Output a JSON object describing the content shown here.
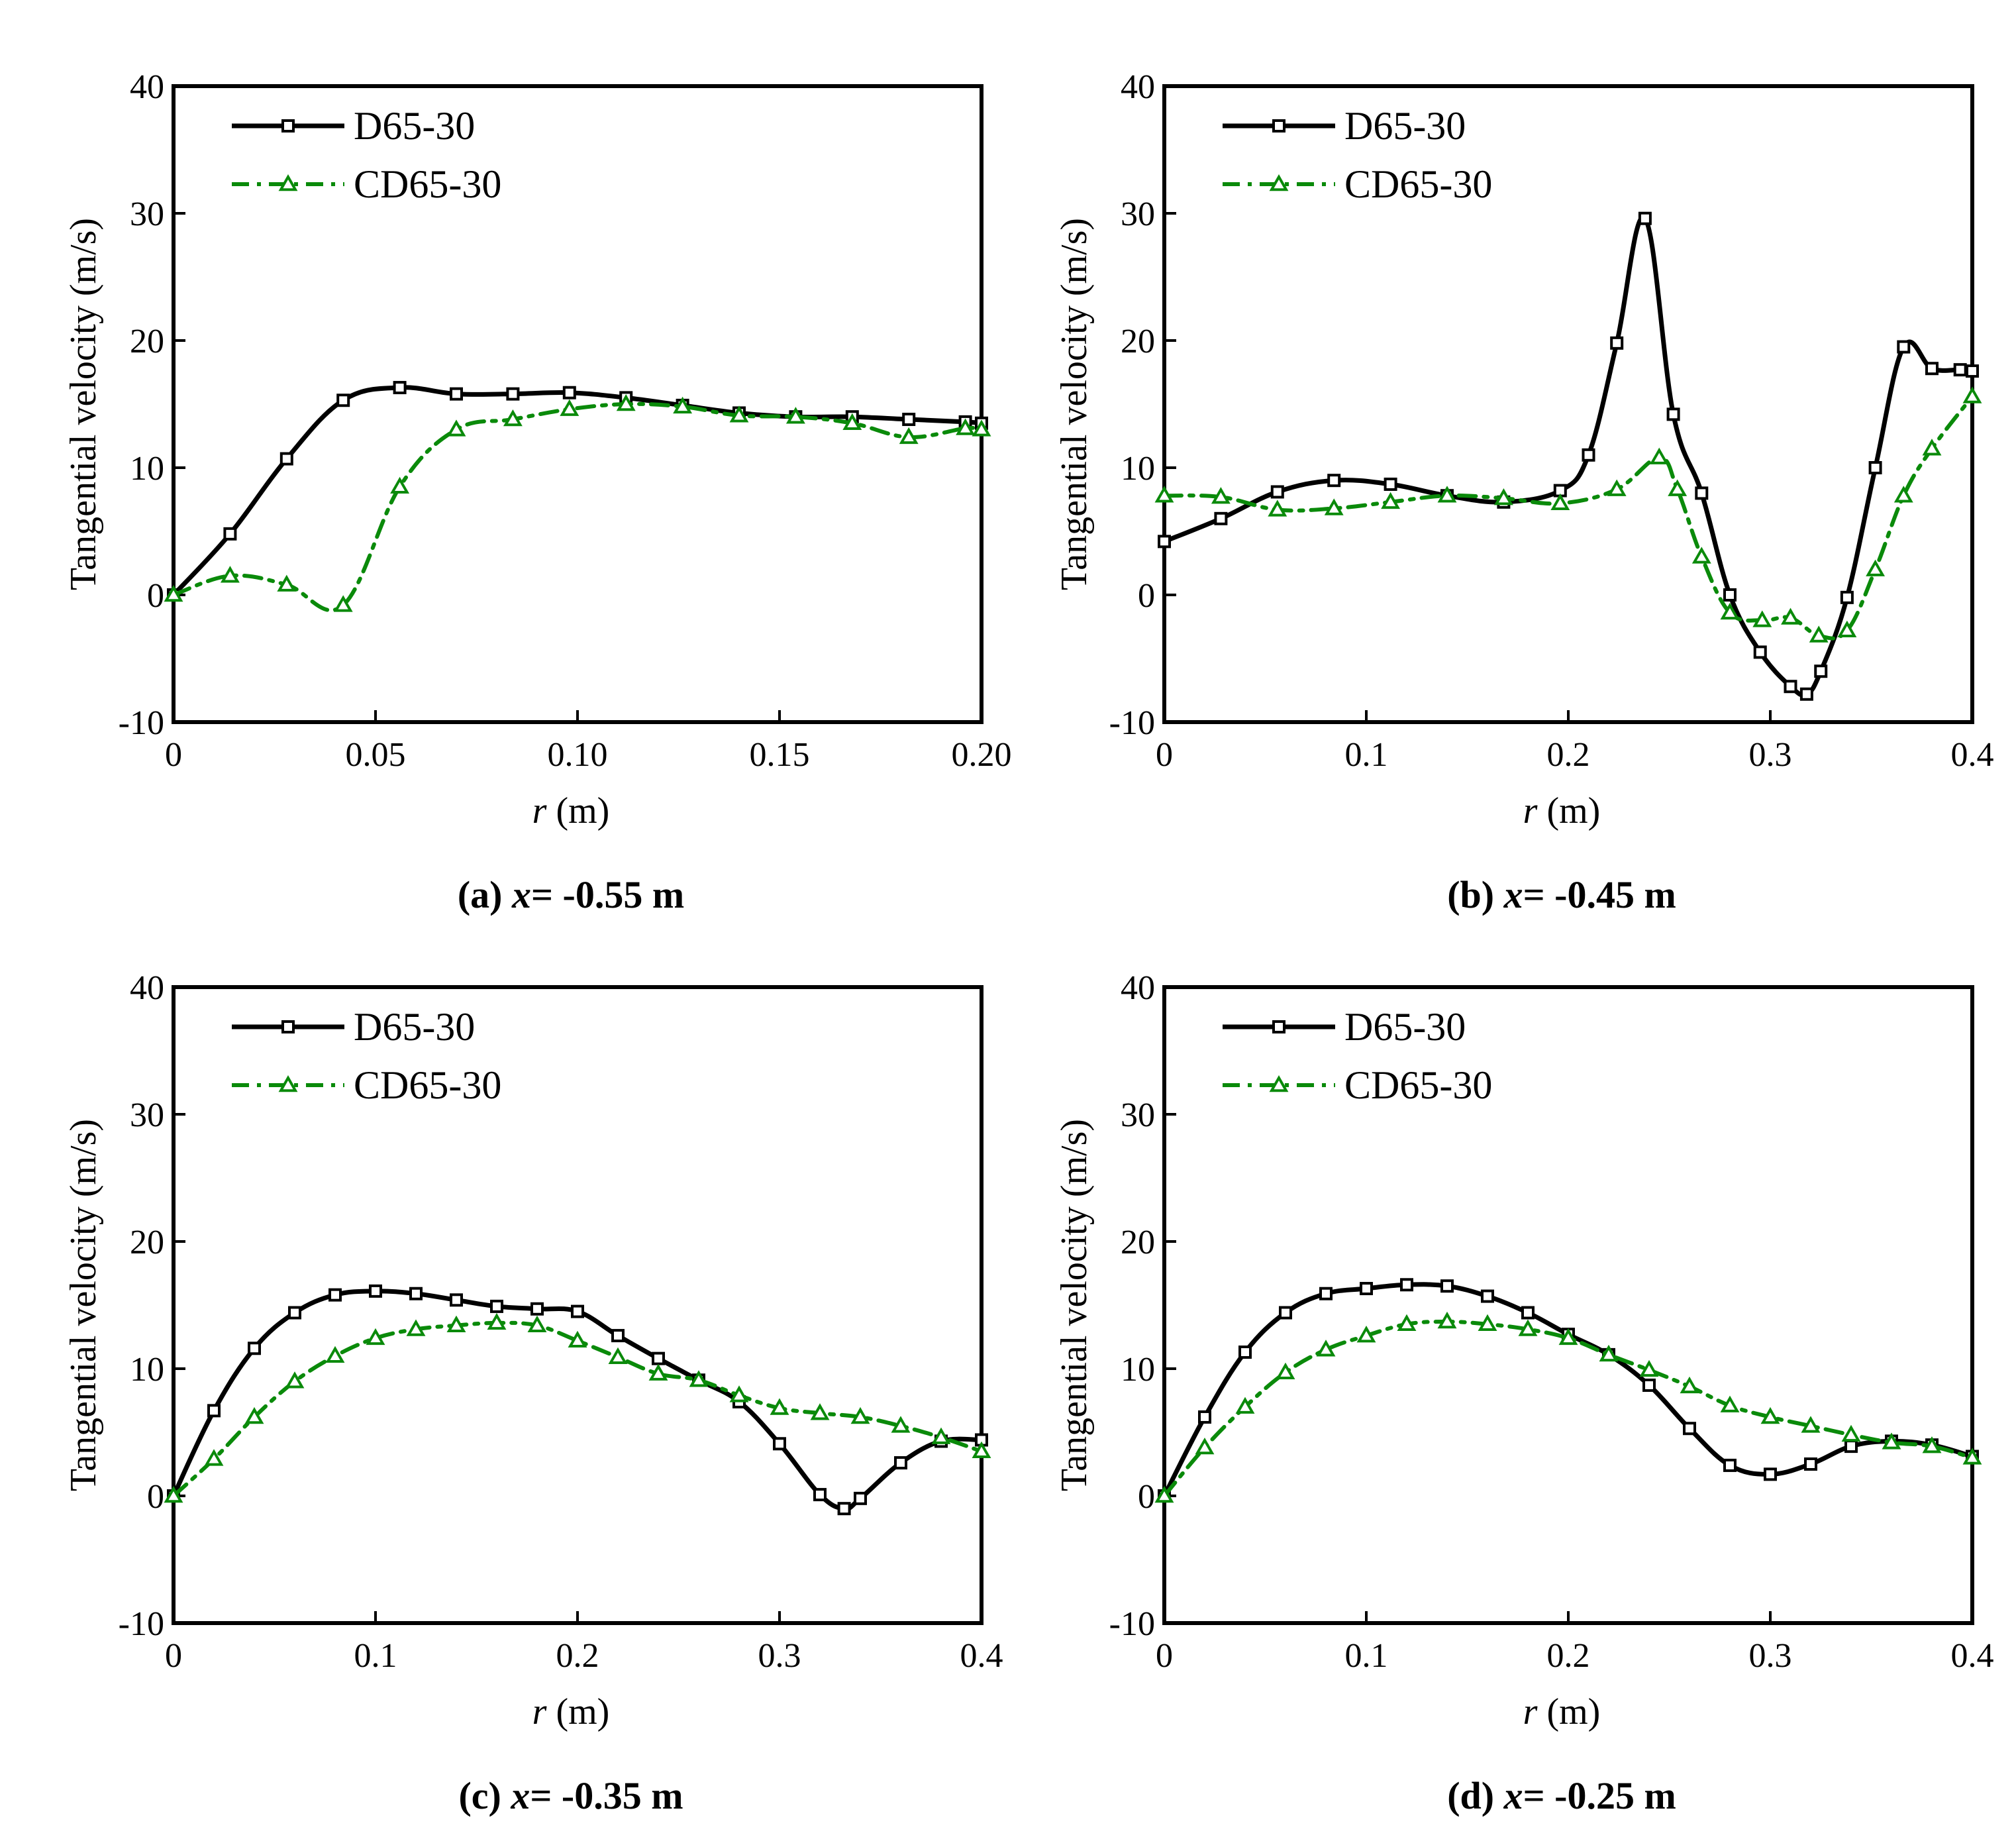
{
  "colors": {
    "d_series": "#000000",
    "cd_series": "#0a8a0a",
    "axis": "#000000",
    "background": "#ffffff"
  },
  "chart_data": [
    {
      "type": "line",
      "caption_label": "(a)",
      "caption_var": "x",
      "caption_value": "= -0.55 m",
      "xlabel_var": "r",
      "xlabel_unit": "(m)",
      "ylabel": "Tangential velocity  (m/s)",
      "xlim": [
        0,
        0.2
      ],
      "ylim": [
        -10,
        40
      ],
      "xticks": [
        0,
        0.05,
        0.1,
        0.15,
        0.2
      ],
      "xtick_labels": [
        "0",
        "0.05",
        "0.10",
        "0.15",
        "0.20"
      ],
      "yticks": [
        -10,
        0,
        10,
        20,
        30,
        40
      ],
      "ytick_labels": [
        "-10",
        "0",
        "10",
        "20",
        "30",
        "40"
      ],
      "legend": "top-left",
      "series": [
        {
          "name": "D65-30",
          "marker": "square",
          "dash": "solid",
          "x": [
            0,
            0.014,
            0.028,
            0.042,
            0.056,
            0.07,
            0.084,
            0.098,
            0.112,
            0.126,
            0.14,
            0.154,
            0.168,
            0.182,
            0.196,
            0.2
          ],
          "y": [
            0,
            4.8,
            10.7,
            15.3,
            16.3,
            15.8,
            15.8,
            15.9,
            15.5,
            14.9,
            14.3,
            14.0,
            14.0,
            13.8,
            13.6,
            13.5
          ]
        },
        {
          "name": "CD65-30",
          "marker": "triangle",
          "dash": "dashdot",
          "x": [
            0,
            0.014,
            0.028,
            0.042,
            0.056,
            0.07,
            0.084,
            0.098,
            0.112,
            0.126,
            0.14,
            0.154,
            0.168,
            0.182,
            0.196,
            0.2
          ],
          "y": [
            0,
            1.5,
            0.8,
            -0.8,
            8.5,
            13.0,
            13.8,
            14.6,
            15.0,
            14.8,
            14.1,
            14.0,
            13.5,
            12.4,
            13.1,
            13.0
          ]
        }
      ]
    },
    {
      "type": "line",
      "caption_label": "(b)",
      "caption_var": "x",
      "caption_value": "= -0.45 m",
      "xlabel_var": "r",
      "xlabel_unit": "(m)",
      "ylabel": "Tangential velocity  (m/s)",
      "xlim": [
        0,
        0.4
      ],
      "ylim": [
        -10,
        40
      ],
      "xticks": [
        0,
        0.1,
        0.2,
        0.3,
        0.4
      ],
      "xtick_labels": [
        "0",
        "0.1",
        "0.2",
        "0.3",
        "0.4"
      ],
      "yticks": [
        -10,
        0,
        10,
        20,
        30,
        40
      ],
      "ytick_labels": [
        "-10",
        "0",
        "10",
        "20",
        "30",
        "40"
      ],
      "legend": "top-left",
      "series": [
        {
          "name": "D65-30",
          "marker": "square",
          "dash": "solid",
          "x": [
            0,
            0.028,
            0.056,
            0.084,
            0.112,
            0.14,
            0.168,
            0.196,
            0.21,
            0.224,
            0.238,
            0.252,
            0.266,
            0.28,
            0.295,
            0.31,
            0.318,
            0.325,
            0.338,
            0.352,
            0.366,
            0.38,
            0.394,
            0.4
          ],
          "y": [
            4.2,
            6.0,
            8.1,
            9.0,
            8.7,
            7.8,
            7.3,
            8.2,
            11.0,
            19.8,
            29.6,
            14.2,
            8.0,
            0.0,
            -4.5,
            -7.2,
            -7.8,
            -6.0,
            -0.2,
            10.0,
            19.5,
            17.8,
            17.7,
            17.6
          ]
        },
        {
          "name": "CD65-30",
          "marker": "triangle",
          "dash": "dashdot",
          "x": [
            0,
            0.028,
            0.056,
            0.084,
            0.112,
            0.14,
            0.168,
            0.196,
            0.224,
            0.245,
            0.254,
            0.266,
            0.28,
            0.296,
            0.31,
            0.324,
            0.338,
            0.352,
            0.366,
            0.38,
            0.4
          ],
          "y": [
            7.8,
            7.7,
            6.7,
            6.8,
            7.3,
            7.8,
            7.6,
            7.2,
            8.3,
            10.8,
            8.3,
            3.0,
            -1.4,
            -2.0,
            -1.8,
            -3.2,
            -2.8,
            2.0,
            7.8,
            11.5,
            15.6
          ]
        }
      ]
    },
    {
      "type": "line",
      "caption_label": "(c)",
      "caption_var": "x",
      "caption_value": "= -0.35 m",
      "xlabel_var": "r",
      "xlabel_unit": "(m)",
      "ylabel": "Tangential velocity  (m/s)",
      "xlim": [
        0,
        0.4
      ],
      "ylim": [
        -10,
        40
      ],
      "xticks": [
        0,
        0.1,
        0.2,
        0.3,
        0.4
      ],
      "xtick_labels": [
        "0",
        "0.1",
        "0.2",
        "0.3",
        "0.4"
      ],
      "yticks": [
        -10,
        0,
        10,
        20,
        30,
        40
      ],
      "ytick_labels": [
        "-10",
        "0",
        "10",
        "20",
        "30",
        "40"
      ],
      "legend": "top-left",
      "series": [
        {
          "name": "D65-30",
          "marker": "square",
          "dash": "solid",
          "x": [
            0,
            0.02,
            0.04,
            0.06,
            0.08,
            0.1,
            0.12,
            0.14,
            0.16,
            0.18,
            0.2,
            0.22,
            0.24,
            0.26,
            0.28,
            0.3,
            0.32,
            0.332,
            0.34,
            0.36,
            0.38,
            0.4
          ],
          "y": [
            0,
            6.7,
            11.6,
            14.4,
            15.8,
            16.1,
            15.9,
            15.4,
            14.9,
            14.7,
            14.5,
            12.6,
            10.8,
            9.1,
            7.4,
            4.1,
            0.1,
            -1.0,
            -0.2,
            2.6,
            4.3,
            4.4
          ]
        },
        {
          "name": "CD65-30",
          "marker": "triangle",
          "dash": "dashdot",
          "x": [
            0,
            0.02,
            0.04,
            0.06,
            0.08,
            0.1,
            0.12,
            0.14,
            0.16,
            0.18,
            0.2,
            0.22,
            0.24,
            0.26,
            0.28,
            0.3,
            0.32,
            0.34,
            0.36,
            0.38,
            0.4
          ],
          "y": [
            0,
            2.9,
            6.2,
            9.0,
            11.0,
            12.4,
            13.1,
            13.4,
            13.6,
            13.4,
            12.2,
            10.9,
            9.6,
            9.1,
            7.9,
            6.9,
            6.5,
            6.2,
            5.5,
            4.6,
            3.5
          ]
        }
      ]
    },
    {
      "type": "line",
      "caption_label": "(d)",
      "caption_var": "x",
      "caption_value": "= -0.25 m",
      "xlabel_var": "r",
      "xlabel_unit": "(m)",
      "ylabel": "Tangential velocity  (m/s)",
      "xlim": [
        0,
        0.4
      ],
      "ylim": [
        -10,
        40
      ],
      "xticks": [
        0,
        0.1,
        0.2,
        0.3,
        0.4
      ],
      "xtick_labels": [
        "0",
        "0.1",
        "0.2",
        "0.3",
        "0.4"
      ],
      "yticks": [
        -10,
        0,
        10,
        20,
        30,
        40
      ],
      "ytick_labels": [
        "-10",
        "0",
        "10",
        "20",
        "30",
        "40"
      ],
      "legend": "top-left",
      "series": [
        {
          "name": "D65-30",
          "marker": "square",
          "dash": "solid",
          "x": [
            0,
            0.02,
            0.04,
            0.06,
            0.08,
            0.1,
            0.12,
            0.14,
            0.16,
            0.18,
            0.2,
            0.22,
            0.24,
            0.26,
            0.28,
            0.3,
            0.32,
            0.34,
            0.36,
            0.38,
            0.4
          ],
          "y": [
            0,
            6.2,
            11.3,
            14.4,
            15.9,
            16.3,
            16.6,
            16.5,
            15.7,
            14.4,
            12.7,
            11.1,
            8.7,
            5.3,
            2.4,
            1.7,
            2.5,
            3.9,
            4.3,
            4.0,
            3.1
          ]
        },
        {
          "name": "CD65-30",
          "marker": "triangle",
          "dash": "dashdot",
          "x": [
            0,
            0.02,
            0.04,
            0.06,
            0.08,
            0.1,
            0.12,
            0.14,
            0.16,
            0.18,
            0.2,
            0.22,
            0.24,
            0.26,
            0.28,
            0.3,
            0.32,
            0.34,
            0.36,
            0.38,
            0.4
          ],
          "y": [
            0,
            3.8,
            7.0,
            9.7,
            11.5,
            12.6,
            13.5,
            13.7,
            13.5,
            13.1,
            12.4,
            11.1,
            9.9,
            8.6,
            7.1,
            6.2,
            5.5,
            4.8,
            4.2,
            3.9,
            3.0
          ]
        }
      ]
    }
  ]
}
